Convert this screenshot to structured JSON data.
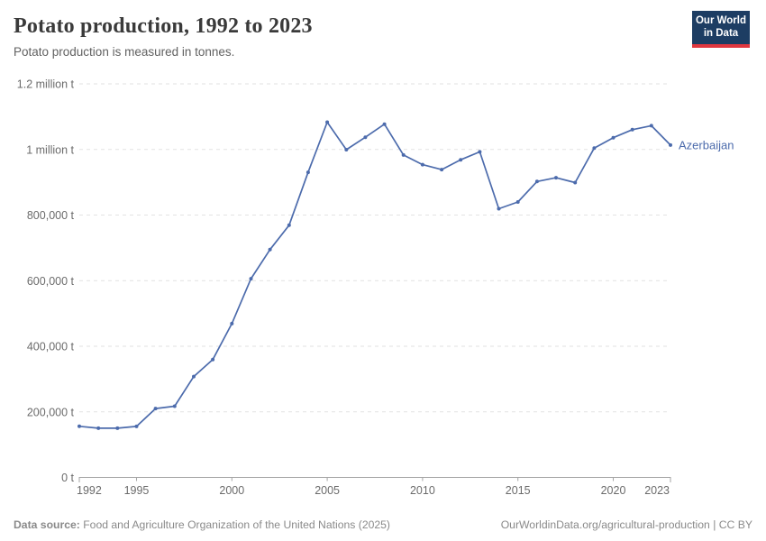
{
  "header": {
    "title": "Potato production, 1992 to 2023",
    "subtitle": "Potato production is measured in tonnes.",
    "logo_line1": "Our World",
    "logo_line2": "in Data"
  },
  "footer": {
    "source_label": "Data source:",
    "source_text": "Food and Agriculture Organization of the United Nations (2025)",
    "attribution": "OurWorldinData.org/agricultural-production | CC BY"
  },
  "colors": {
    "line": "#4C6BAC",
    "entity_label": "#4C6BAC",
    "grid": "#e2e2e2",
    "axis": "#a5a5a5",
    "tick_label": "#6b6b6b",
    "background": "#ffffff",
    "logo_bg": "#1d3d63",
    "logo_accent": "#e0373f"
  },
  "chart_data": {
    "type": "line",
    "title": "Potato production, 1992 to 2023",
    "subtitle": "Potato production is measured in tonnes.",
    "unit": "tonnes",
    "grid": true,
    "legend_position": "end-of-line-label",
    "xlim": [
      1992,
      2023
    ],
    "ylim": [
      0,
      1200000
    ],
    "x_ticks": [
      1992,
      1995,
      2000,
      2005,
      2010,
      2015,
      2020,
      2023
    ],
    "y_ticks": [
      {
        "value": 0,
        "label": "0 t"
      },
      {
        "value": 200000,
        "label": "200,000 t"
      },
      {
        "value": 400000,
        "label": "400,000 t"
      },
      {
        "value": 600000,
        "label": "600,000 t"
      },
      {
        "value": 800000,
        "label": "800,000 t"
      },
      {
        "value": 1000000,
        "label": "1 million t"
      },
      {
        "value": 1200000,
        "label": "1.2 million t"
      }
    ],
    "x": [
      1992,
      1993,
      1994,
      1995,
      1996,
      1997,
      1998,
      1999,
      2000,
      2001,
      2002,
      2003,
      2004,
      2005,
      2006,
      2007,
      2008,
      2009,
      2010,
      2011,
      2012,
      2013,
      2014,
      2015,
      2016,
      2017,
      2018,
      2019,
      2020,
      2021,
      2022,
      2023
    ],
    "series": [
      {
        "name": "Azerbaijan",
        "color": "#4C6BAC",
        "values": [
          156000,
          150000,
          150000,
          155500,
          209900,
          217100,
          307700,
          359300,
          469000,
          605800,
          694800,
          769000,
          930400,
          1083100,
          999300,
          1037300,
          1077100,
          983000,
          953700,
          938500,
          968500,
          992800,
          819300,
          839800,
          902400,
          913900,
          898900,
          1004200,
          1036000,
          1060400,
          1072400,
          1013300
        ]
      }
    ]
  }
}
